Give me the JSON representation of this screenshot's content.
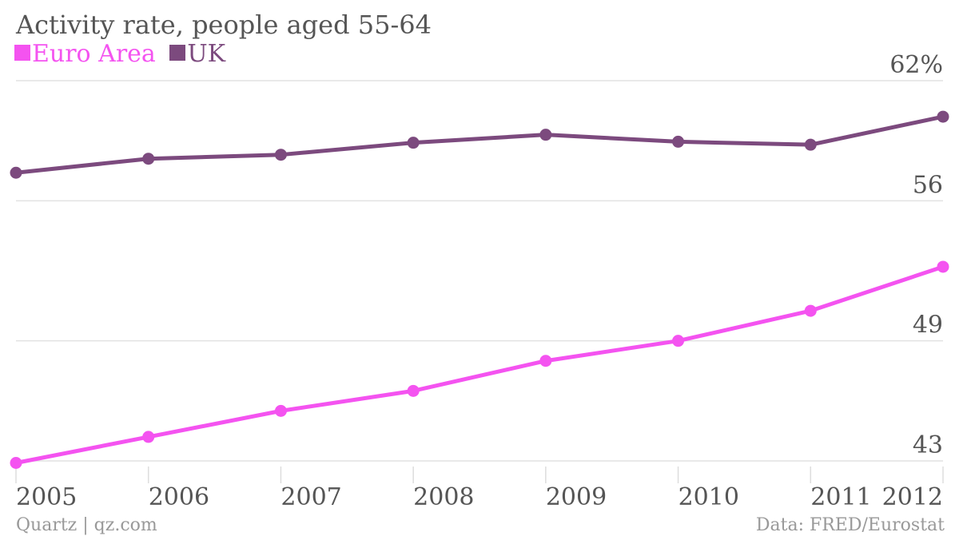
{
  "chart_data": {
    "type": "line",
    "title": "Activity rate, people aged 55-64",
    "x": [
      "2005",
      "2006",
      "2007",
      "2008",
      "2009",
      "2010",
      "2011",
      "2012"
    ],
    "series": [
      {
        "name": "Euro Area",
        "color": "#f453f0",
        "values": [
          42.9,
          44.2,
          45.5,
          46.5,
          48.0,
          49.0,
          50.5,
          52.7
        ]
      },
      {
        "name": "UK",
        "color": "#7c4a7e",
        "values": [
          57.4,
          58.1,
          58.3,
          58.9,
          59.3,
          58.95,
          58.8,
          60.2
        ]
      }
    ],
    "ylim": [
      43,
      62
    ],
    "yticks": [
      {
        "value": 62,
        "label": "62%"
      },
      {
        "value": 56,
        "label": "56"
      },
      {
        "value": 49,
        "label": "49"
      },
      {
        "value": 43,
        "label": "43"
      }
    ],
    "grid": true,
    "legend": "top-left",
    "source": "Data: FRED/Eurostat",
    "credit": "Quartz | qz.com"
  }
}
